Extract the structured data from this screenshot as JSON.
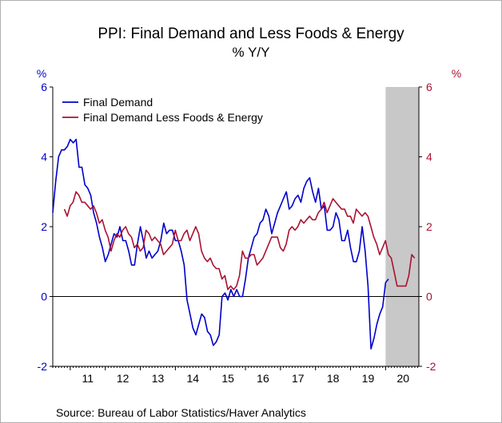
{
  "chart_data": {
    "type": "line",
    "title": "PPI: Final Demand and Less Foods & Energy",
    "subtitle": "% Y/Y",
    "left_unit": "%",
    "right_unit": "%",
    "ylim": [
      -2,
      6
    ],
    "yticks": [
      -2,
      0,
      2,
      4,
      6
    ],
    "xlim": [
      2010.5,
      2020.95
    ],
    "x_tick_labels": [
      "11",
      "12",
      "13",
      "14",
      "15",
      "16",
      "17",
      "18",
      "19",
      "20"
    ],
    "recession_shade": [
      2020.0,
      2020.95
    ],
    "grid": false,
    "legend_position": "top-left",
    "colors": {
      "final_demand": "#0000CC",
      "less_foods_energy": "#AA1133",
      "shade": "#C8C8C8"
    },
    "source": "Source:  Bureau of Labor Statistics/Haver Analytics",
    "series": [
      {
        "name": "Final Demand",
        "start": 2010.5,
        "step": 0.0833333,
        "values": [
          2.4,
          3.3,
          4.0,
          4.2,
          4.2,
          4.3,
          4.5,
          4.4,
          4.5,
          3.7,
          3.7,
          3.2,
          3.1,
          2.9,
          2.4,
          2.1,
          1.7,
          1.4,
          1.0,
          1.2,
          1.5,
          1.8,
          1.7,
          2.0,
          1.6,
          1.6,
          1.3,
          0.9,
          0.9,
          1.5,
          2.0,
          1.6,
          1.1,
          1.3,
          1.1,
          1.2,
          1.3,
          1.6,
          2.1,
          1.8,
          1.9,
          1.9,
          1.6,
          1.6,
          1.3,
          0.9,
          -0.1,
          -0.5,
          -0.9,
          -1.1,
          -0.8,
          -0.5,
          -0.6,
          -1.0,
          -1.1,
          -1.4,
          -1.3,
          -1.1,
          0.0,
          0.1,
          -0.1,
          0.2,
          0.0,
          0.2,
          0.0,
          0.0,
          0.5,
          1.1,
          1.4,
          1.7,
          1.8,
          2.1,
          2.2,
          2.5,
          2.3,
          1.8,
          2.1,
          2.4,
          2.6,
          2.8,
          3.0,
          2.5,
          2.6,
          2.8,
          2.9,
          2.7,
          3.1,
          3.3,
          3.4,
          3.0,
          2.7,
          3.1,
          2.5,
          2.6,
          1.9,
          1.9,
          2.0,
          2.4,
          2.2,
          1.6,
          1.6,
          1.9,
          1.4,
          1.0,
          1.0,
          1.3,
          2.0,
          1.3,
          0.3,
          -1.5,
          -1.2,
          -0.8,
          -0.5,
          -0.3,
          0.4,
          0.5
        ]
      },
      {
        "name": "Final Demand Less Foods & Energy",
        "start": 2010.83,
        "step": 0.0833333,
        "values": [
          2.5,
          2.3,
          2.6,
          2.7,
          3.0,
          2.9,
          2.7,
          2.7,
          2.6,
          2.5,
          2.6,
          2.4,
          2.1,
          2.2,
          1.9,
          1.7,
          1.3,
          1.6,
          1.8,
          1.7,
          1.9,
          2.0,
          1.8,
          1.7,
          1.4,
          1.5,
          1.3,
          1.4,
          1.9,
          1.8,
          1.6,
          1.7,
          1.6,
          1.5,
          1.2,
          1.3,
          1.4,
          1.5,
          1.9,
          1.6,
          1.6,
          1.8,
          1.9,
          1.6,
          1.8,
          2.0,
          1.8,
          1.3,
          1.1,
          1.0,
          1.1,
          0.9,
          0.8,
          0.8,
          0.5,
          0.6,
          0.2,
          0.3,
          0.2,
          0.3,
          0.6,
          1.3,
          1.1,
          1.1,
          1.2,
          1.2,
          0.9,
          1.0,
          1.1,
          1.3,
          1.5,
          1.7,
          1.7,
          1.7,
          1.4,
          1.3,
          1.5,
          1.9,
          2.0,
          1.9,
          2.0,
          2.2,
          2.1,
          2.2,
          2.3,
          2.2,
          2.2,
          2.4,
          2.5,
          2.7,
          2.4,
          2.6,
          2.8,
          2.7,
          2.6,
          2.5,
          2.5,
          2.3,
          2.3,
          2.1,
          2.5,
          2.4,
          2.3,
          2.4,
          2.3,
          2.0,
          1.7,
          1.5,
          1.2,
          1.4,
          1.6,
          1.2,
          1.1,
          0.7,
          0.3,
          0.3,
          0.3,
          0.3,
          0.6,
          1.2,
          1.1
        ]
      }
    ]
  }
}
